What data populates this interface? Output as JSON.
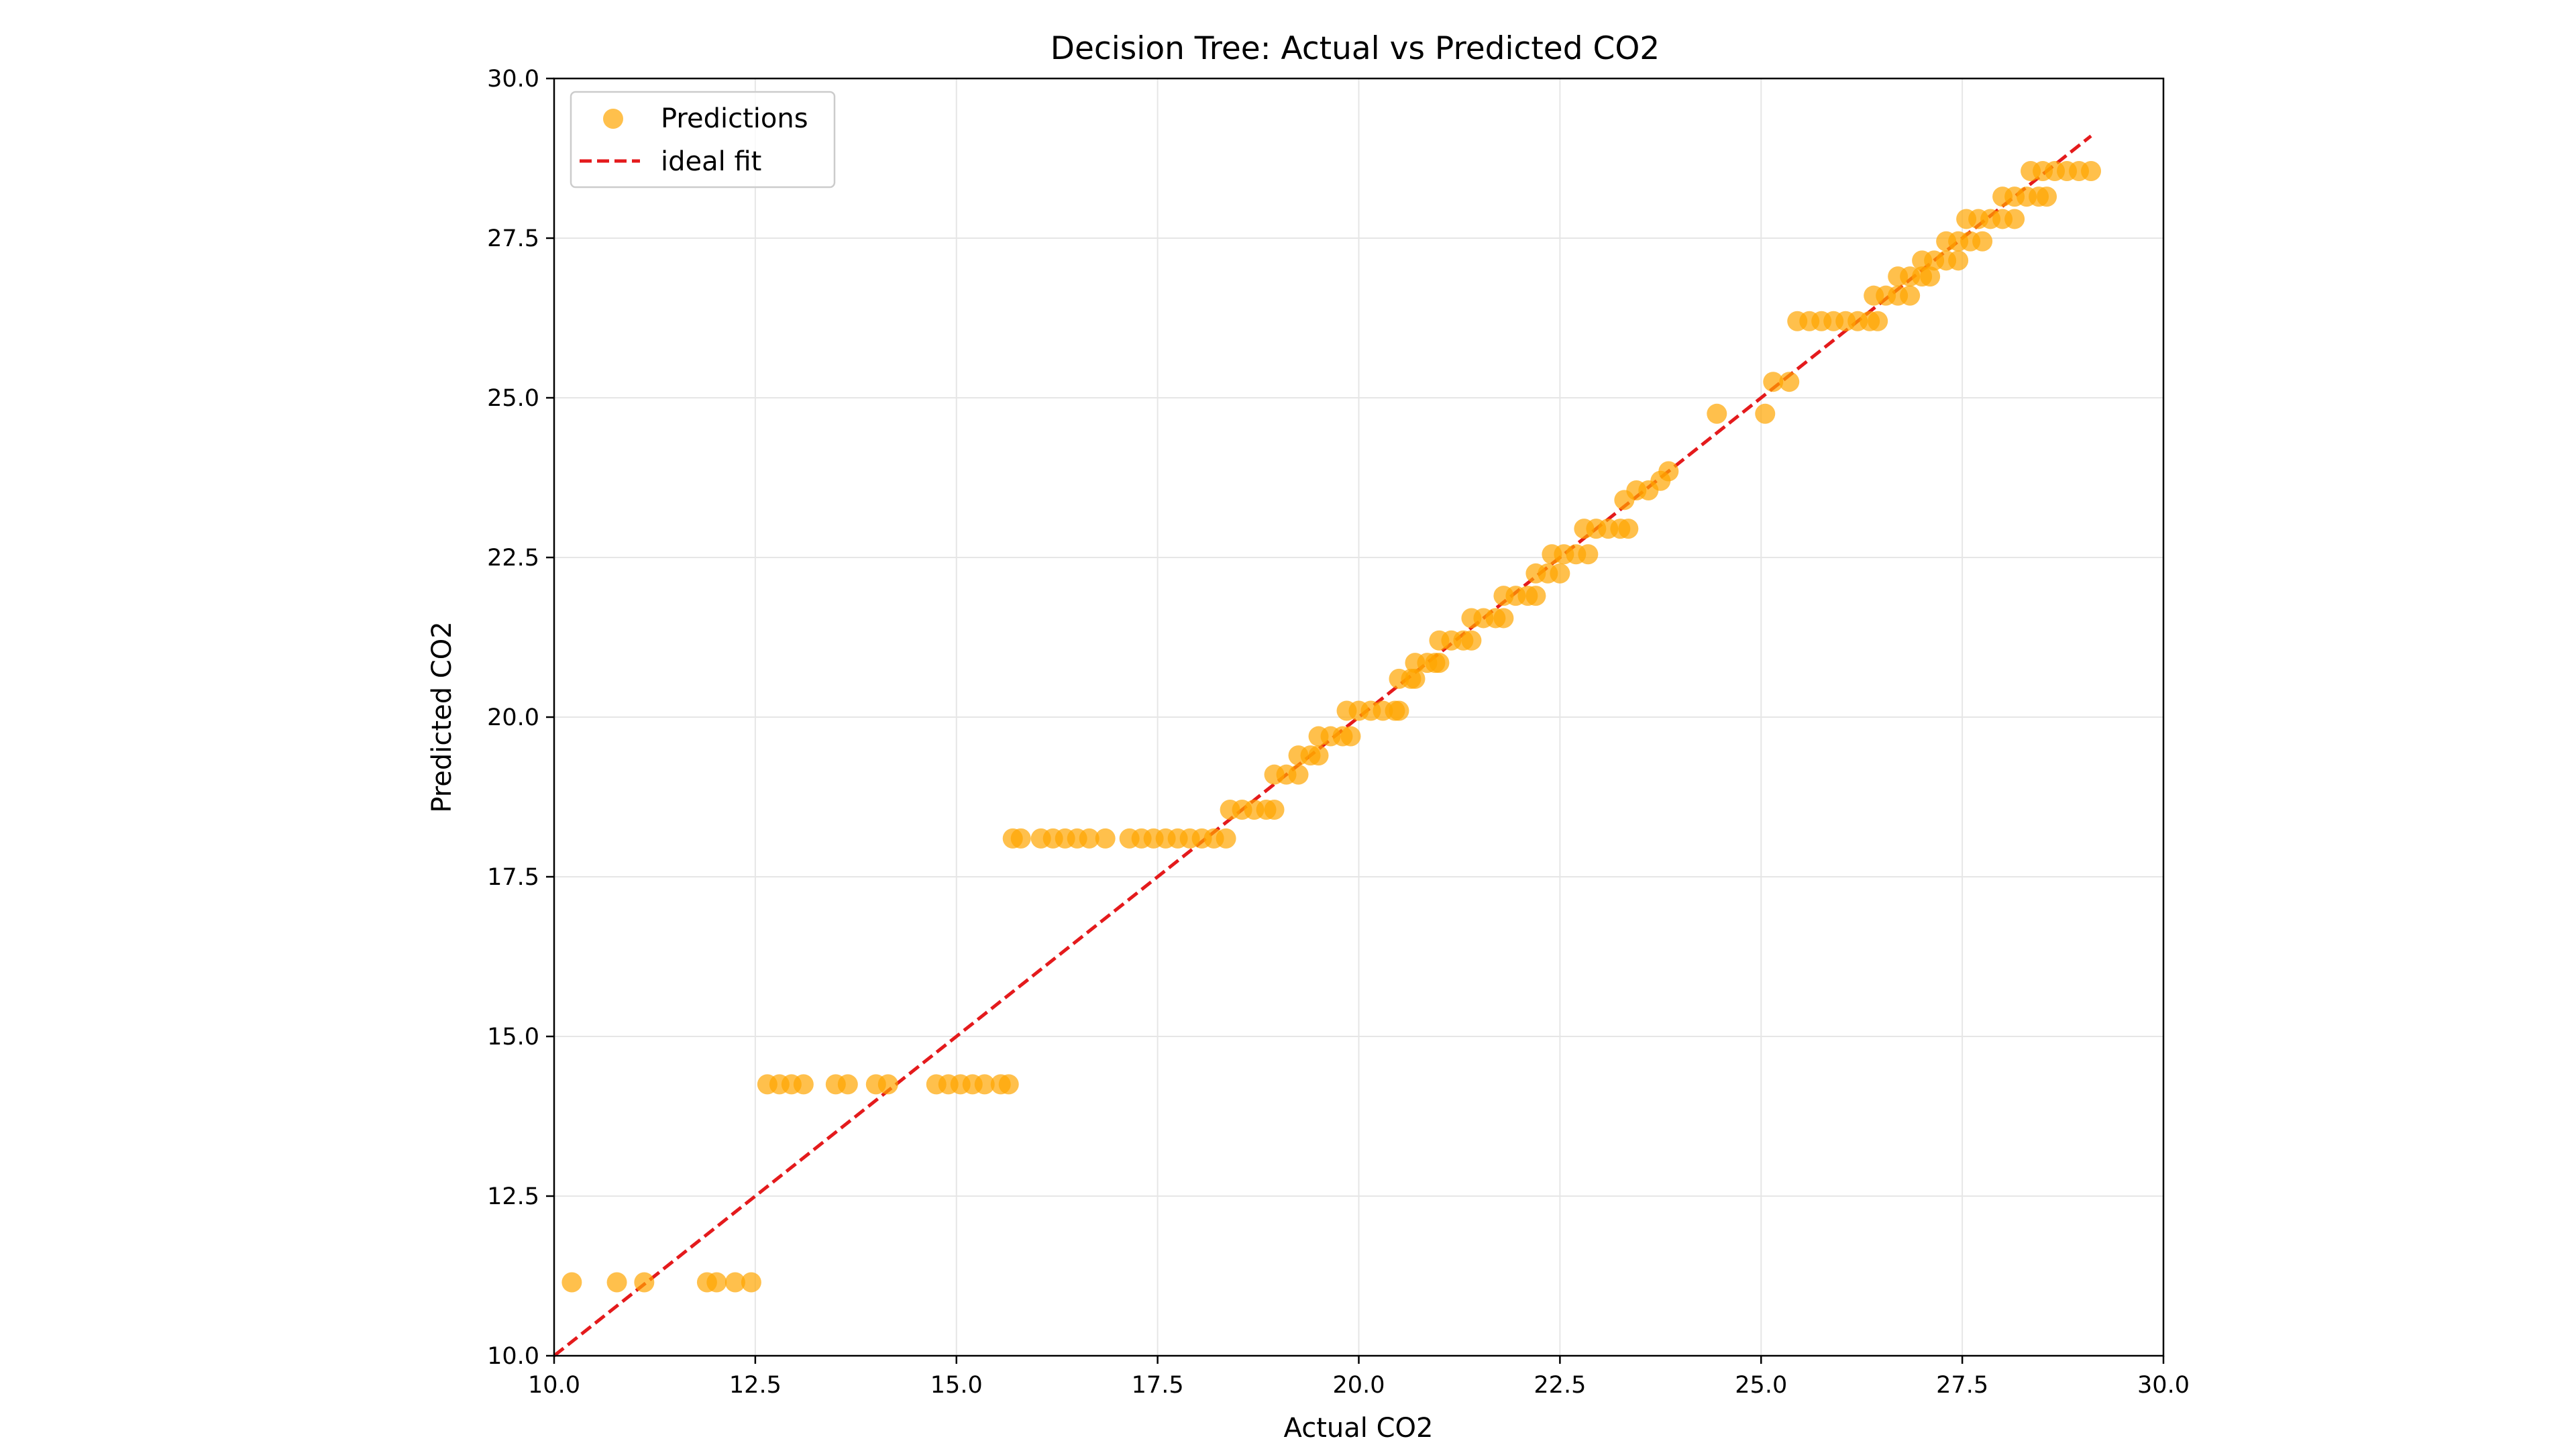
{
  "chart_data": {
    "type": "scatter",
    "title": "Decision Tree: Actual vs Predicted CO2",
    "xlabel": "Actual CO2",
    "ylabel": "Predicted CO2",
    "xlim": [
      10.0,
      30.0
    ],
    "ylim": [
      10.0,
      30.0
    ],
    "xticks": [
      "10.0",
      "12.5",
      "15.0",
      "17.5",
      "20.0",
      "22.5",
      "25.0",
      "27.5",
      "30.0"
    ],
    "yticks": [
      "10.0",
      "12.5",
      "15.0",
      "17.5",
      "20.0",
      "22.5",
      "25.0",
      "27.5",
      "30.0"
    ],
    "grid": true,
    "legend_position": "top-left",
    "colors": {
      "points": "#FFA500",
      "ideal": "#E41A1C",
      "grid": "#e6e6e6"
    },
    "series": [
      {
        "name": "Predictions",
        "kind": "scatter",
        "points": [
          [
            10.22,
            11.15
          ],
          [
            10.78,
            11.15
          ],
          [
            11.12,
            11.15
          ],
          [
            11.9,
            11.15
          ],
          [
            12.02,
            11.15
          ],
          [
            12.25,
            11.15
          ],
          [
            12.45,
            11.15
          ],
          [
            12.65,
            14.25
          ],
          [
            12.8,
            14.25
          ],
          [
            12.95,
            14.25
          ],
          [
            13.1,
            14.25
          ],
          [
            13.5,
            14.25
          ],
          [
            13.65,
            14.25
          ],
          [
            14.0,
            14.25
          ],
          [
            14.15,
            14.25
          ],
          [
            14.75,
            14.25
          ],
          [
            14.9,
            14.25
          ],
          [
            15.05,
            14.25
          ],
          [
            15.2,
            14.25
          ],
          [
            15.35,
            14.25
          ],
          [
            15.55,
            14.25
          ],
          [
            15.65,
            14.25
          ],
          [
            15.7,
            18.1
          ],
          [
            15.8,
            18.1
          ],
          [
            16.05,
            18.1
          ],
          [
            16.2,
            18.1
          ],
          [
            16.35,
            18.1
          ],
          [
            16.5,
            18.1
          ],
          [
            16.65,
            18.1
          ],
          [
            16.85,
            18.1
          ],
          [
            17.15,
            18.1
          ],
          [
            17.3,
            18.1
          ],
          [
            17.45,
            18.1
          ],
          [
            17.6,
            18.1
          ],
          [
            17.75,
            18.1
          ],
          [
            17.9,
            18.1
          ],
          [
            18.05,
            18.1
          ],
          [
            18.2,
            18.1
          ],
          [
            18.35,
            18.1
          ],
          [
            18.4,
            18.55
          ],
          [
            18.55,
            18.55
          ],
          [
            18.7,
            18.55
          ],
          [
            18.85,
            18.55
          ],
          [
            18.95,
            18.55
          ],
          [
            18.95,
            19.1
          ],
          [
            19.1,
            19.1
          ],
          [
            19.25,
            19.1
          ],
          [
            19.25,
            19.4
          ],
          [
            19.4,
            19.4
          ],
          [
            19.5,
            19.4
          ],
          [
            19.5,
            19.7
          ],
          [
            19.65,
            19.7
          ],
          [
            19.8,
            19.7
          ],
          [
            19.9,
            19.7
          ],
          [
            19.85,
            20.1
          ],
          [
            20.0,
            20.1
          ],
          [
            20.15,
            20.1
          ],
          [
            20.3,
            20.1
          ],
          [
            20.45,
            20.1
          ],
          [
            20.5,
            20.1
          ],
          [
            20.5,
            20.6
          ],
          [
            20.65,
            20.6
          ],
          [
            20.7,
            20.6
          ],
          [
            20.7,
            20.85
          ],
          [
            20.85,
            20.85
          ],
          [
            20.95,
            20.85
          ],
          [
            21.0,
            20.85
          ],
          [
            21.0,
            21.2
          ],
          [
            21.15,
            21.2
          ],
          [
            21.3,
            21.2
          ],
          [
            21.4,
            21.2
          ],
          [
            21.4,
            21.55
          ],
          [
            21.55,
            21.55
          ],
          [
            21.7,
            21.55
          ],
          [
            21.8,
            21.55
          ],
          [
            21.8,
            21.9
          ],
          [
            21.95,
            21.9
          ],
          [
            22.1,
            21.9
          ],
          [
            22.2,
            21.9
          ],
          [
            22.2,
            22.25
          ],
          [
            22.35,
            22.25
          ],
          [
            22.5,
            22.25
          ],
          [
            22.4,
            22.55
          ],
          [
            22.55,
            22.55
          ],
          [
            22.7,
            22.55
          ],
          [
            22.85,
            22.55
          ],
          [
            22.8,
            22.95
          ],
          [
            22.95,
            22.95
          ],
          [
            23.1,
            22.95
          ],
          [
            23.25,
            22.95
          ],
          [
            23.35,
            22.95
          ],
          [
            23.3,
            23.4
          ],
          [
            23.45,
            23.55
          ],
          [
            23.6,
            23.55
          ],
          [
            23.75,
            23.7
          ],
          [
            23.85,
            23.85
          ],
          [
            24.45,
            24.75
          ],
          [
            25.05,
            24.75
          ],
          [
            25.15,
            25.25
          ],
          [
            25.35,
            25.25
          ],
          [
            25.45,
            26.2
          ],
          [
            25.6,
            26.2
          ],
          [
            25.75,
            26.2
          ],
          [
            25.9,
            26.2
          ],
          [
            26.05,
            26.2
          ],
          [
            26.2,
            26.2
          ],
          [
            26.35,
            26.2
          ],
          [
            26.45,
            26.2
          ],
          [
            26.4,
            26.6
          ],
          [
            26.55,
            26.6
          ],
          [
            26.7,
            26.6
          ],
          [
            26.85,
            26.6
          ],
          [
            26.7,
            26.9
          ],
          [
            26.85,
            26.9
          ],
          [
            27.0,
            26.9
          ],
          [
            27.1,
            26.9
          ],
          [
            27.0,
            27.15
          ],
          [
            27.15,
            27.15
          ],
          [
            27.3,
            27.15
          ],
          [
            27.45,
            27.15
          ],
          [
            27.3,
            27.45
          ],
          [
            27.45,
            27.45
          ],
          [
            27.6,
            27.45
          ],
          [
            27.75,
            27.45
          ],
          [
            27.55,
            27.8
          ],
          [
            27.7,
            27.8
          ],
          [
            27.85,
            27.8
          ],
          [
            28.0,
            27.8
          ],
          [
            28.15,
            27.8
          ],
          [
            28.0,
            28.15
          ],
          [
            28.15,
            28.15
          ],
          [
            28.3,
            28.15
          ],
          [
            28.45,
            28.15
          ],
          [
            28.55,
            28.15
          ],
          [
            28.35,
            28.55
          ],
          [
            28.5,
            28.55
          ],
          [
            28.65,
            28.55
          ],
          [
            28.8,
            28.55
          ],
          [
            28.95,
            28.55
          ],
          [
            29.1,
            28.55
          ]
        ]
      },
      {
        "name": "ideal fit",
        "kind": "line",
        "points": [
          [
            10.0,
            10.0
          ],
          [
            29.1,
            29.1
          ]
        ]
      }
    ]
  }
}
